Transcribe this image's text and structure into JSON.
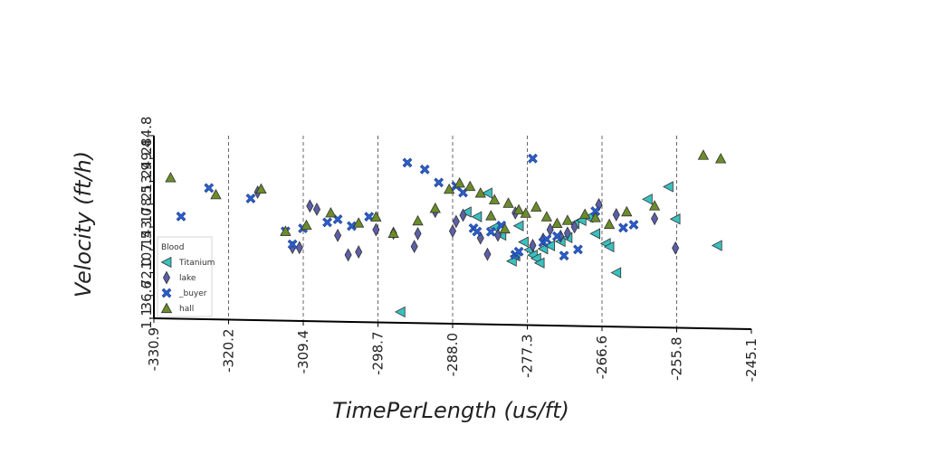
{
  "chart_data": {
    "type": "scatter",
    "title": "",
    "xlabel": "TimePerLength (us/ft)",
    "ylabel": "Velocity (ft/h)",
    "xlim": [
      -330.9,
      -245.1
    ],
    "ylim": [
      1.1,
      284.8
    ],
    "x_ticks": [
      "-330.9",
      "-320.2",
      "-309.4",
      "-298.7",
      "-288.0",
      "-277.3",
      "-266.6",
      "-255.8",
      "-245.1"
    ],
    "y_ticks": [
      "1.1",
      "36.6",
      "72.0",
      "107.5",
      "143.0",
      "178.5",
      "213.9",
      "249.4",
      "284.8"
    ],
    "grid": "vertical dashed",
    "legend": {
      "title": "Blood",
      "placement": "left"
    },
    "series": [
      {
        "name": "Titanium",
        "marker": "triangle-left",
        "color": "#3bbfbf",
        "x": [
          -286.0,
          -284.5,
          -283.0,
          -282.0,
          -281.0,
          -279.5,
          -278.5,
          -277.8,
          -277.0,
          -276.5,
          -276.0,
          -275.5,
          -275.0,
          -274.0,
          -272.5,
          -271.5,
          -270.5,
          -269.5,
          -268.5,
          -267.5,
          -266.0,
          -265.5,
          -264.5,
          -260.0,
          -257.0,
          -256.0,
          -250.0,
          -295.5,
          -279.0
        ],
        "y": [
          175,
          168,
          205,
          152,
          140,
          100,
          155,
          130,
          118,
          110,
          105,
          98,
          120,
          125,
          132,
          138,
          160,
          165,
          170,
          145,
          130,
          125,
          85,
          200,
          220,
          170,
          130,
          18,
          108
        ]
      },
      {
        "name": "lake",
        "marker": "diamond",
        "color": "#5b5fa8",
        "x": [
          -316.0,
          -311.0,
          -310.0,
          -308.5,
          -307.5,
          -304.5,
          -303.0,
          -301.5,
          -299.0,
          -296.5,
          -293.0,
          -290.5,
          -288.0,
          -286.5,
          -284.0,
          -281.5,
          -279.0,
          -276.5,
          -275.0,
          -274.0,
          -272.5,
          -271.5,
          -270.5,
          -267.0,
          -264.5,
          -259.0,
          -256.0,
          -287.5,
          -283.0,
          -293.5
        ],
        "y": [
          200,
          115,
          115,
          180,
          175,
          135,
          105,
          110,
          145,
          140,
          140,
          175,
          145,
          170,
          135,
          140,
          175,
          125,
          135,
          150,
          140,
          145,
          155,
          190,
          175,
          170,
          125,
          160,
          110,
          120
        ]
      },
      {
        "name": "_buyer",
        "marker": "cross",
        "color": "#2a5fcf",
        "x": [
          -323.0,
          -327.0,
          -317.0,
          -312.0,
          -311.0,
          -309.5,
          -306.0,
          -304.5,
          -302.5,
          -300.0,
          -294.5,
          -292.0,
          -290.0,
          -287.5,
          -286.5,
          -285.0,
          -284.5,
          -282.5,
          -281.0,
          -279.0,
          -278.5,
          -276.5,
          -275.0,
          -274.5,
          -273.0,
          -272.0,
          -270.0,
          -267.5,
          -263.5,
          -262.0
        ],
        "y": [
          205,
          160,
          190,
          140,
          120,
          145,
          155,
          160,
          150,
          165,
          250,
          240,
          220,
          215,
          205,
          150,
          145,
          145,
          155,
          110,
          115,
          260,
          130,
          135,
          140,
          110,
          120,
          180,
          155,
          160
        ]
      },
      {
        "name": "hall",
        "marker": "triangle-up",
        "color": "#6b8c2a",
        "x": [
          -328.5,
          -322.0,
          -315.5,
          -312.0,
          -309.0,
          -305.5,
          -301.5,
          -299.0,
          -296.5,
          -293.0,
          -290.5,
          -288.5,
          -287.0,
          -285.5,
          -284.0,
          -282.0,
          -280.0,
          -278.5,
          -277.5,
          -276.0,
          -274.5,
          -273.0,
          -271.5,
          -269.0,
          -267.5,
          -265.5,
          -263.0,
          -259.0,
          -252.0,
          -249.5,
          -282.5,
          -280.5
        ],
        "y": [
          220,
          195,
          205,
          140,
          150,
          170,
          155,
          165,
          140,
          160,
          180,
          210,
          220,
          215,
          205,
          195,
          190,
          180,
          175,
          185,
          170,
          160,
          165,
          175,
          170,
          160,
          180,
          190,
          270,
          265,
          170,
          150
        ]
      }
    ]
  }
}
